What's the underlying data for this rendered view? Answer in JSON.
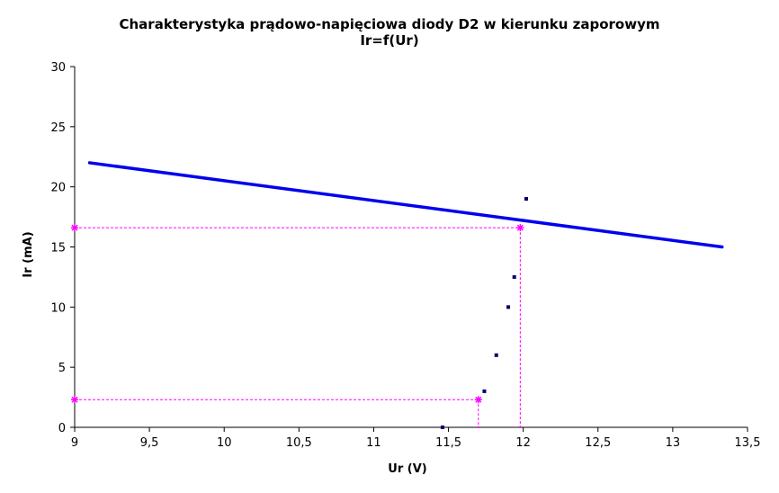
{
  "chart_data": {
    "type": "scatter",
    "title": "Charakterystyka prądowo-napięciowa diody D2 w kierunku zaporowym",
    "subtitle": "Ir=f(Ur)",
    "xlabel": "Ur (V)",
    "ylabel": "Ir (mA)",
    "xlim": [
      9,
      13.5
    ],
    "ylim": [
      0,
      30
    ],
    "x_ticks": [
      "9",
      "9,5",
      "10",
      "10,5",
      "11",
      "11,5",
      "12",
      "12,5",
      "13",
      "13,5"
    ],
    "y_ticks": [
      "0",
      "5",
      "10",
      "15",
      "20",
      "25",
      "30"
    ],
    "grid": false,
    "series": [
      {
        "kind": "points",
        "color": "#000066",
        "points": [
          {
            "x": 11.46,
            "y": 0
          },
          {
            "x": 11.74,
            "y": 3
          },
          {
            "x": 11.82,
            "y": 6
          },
          {
            "x": 11.9,
            "y": 10
          },
          {
            "x": 11.94,
            "y": 12.5
          },
          {
            "x": 12.02,
            "y": 19
          }
        ]
      },
      {
        "kind": "line",
        "color": "#0000ee",
        "points": [
          {
            "x": 9.1,
            "y": 22
          },
          {
            "x": 13.33,
            "y": 15
          }
        ]
      }
    ],
    "annotations": [
      {
        "color": "#ff00ff",
        "x": 11.98,
        "y": 16.6
      },
      {
        "color": "#ff00ff",
        "x": 11.7,
        "y": 2.3
      }
    ]
  }
}
